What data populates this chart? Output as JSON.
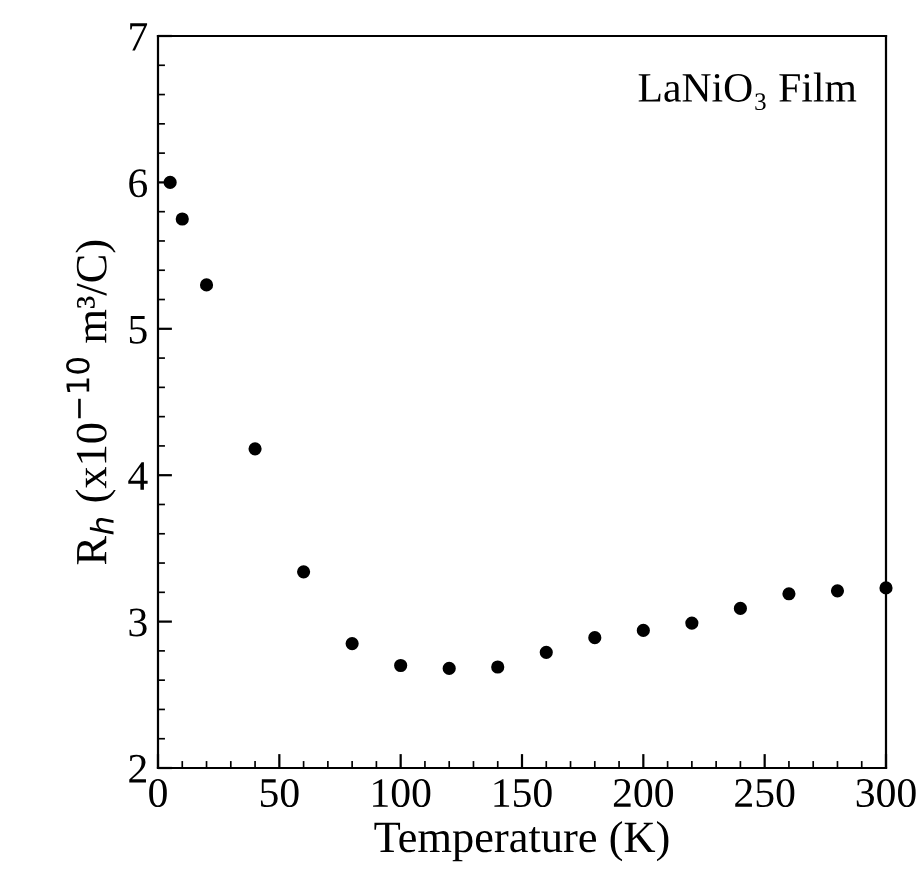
{
  "chart_data": {
    "type": "scatter",
    "xlabel": "Temperature (K)",
    "ylabel": "R$_{h}$ (x10$^{−10}$ m³/C)",
    "annotations": [
      "LaNiO₃ Film"
    ],
    "x": [
      5,
      10,
      20,
      40,
      60,
      80,
      100,
      120,
      140,
      160,
      180,
      200,
      220,
      240,
      260,
      280,
      300
    ],
    "series": [
      {
        "color": "#000000",
        "values": [
          6.0,
          5.75,
          5.3,
          4.18,
          3.34,
          2.85,
          2.7,
          2.68,
          2.69,
          2.79,
          2.89,
          2.94,
          2.99,
          3.09,
          3.19,
          3.21,
          3.23
        ]
      }
    ],
    "xlim": [
      0,
      300
    ],
    "xticks": [
      0,
      50,
      100,
      150,
      200,
      250,
      300
    ],
    "ylim": [
      2,
      7
    ],
    "yticks": [
      2,
      3,
      4,
      5,
      6,
      7
    ],
    "marker": "circle",
    "grid": false,
    "legend": false
  }
}
